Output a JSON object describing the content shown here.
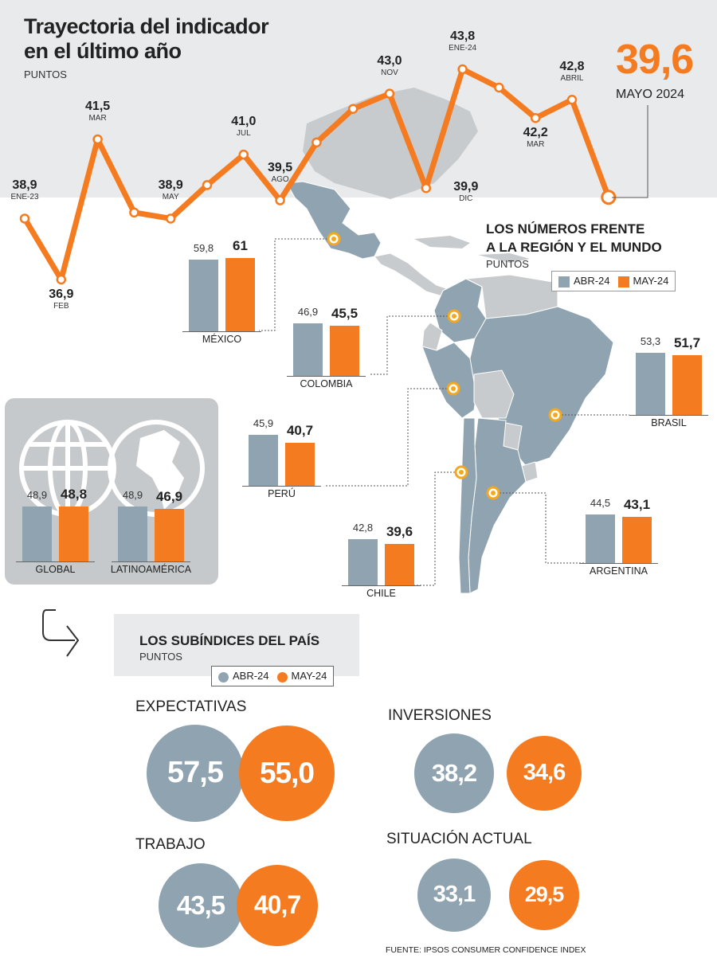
{
  "header": {
    "title_line1": "Trayectoria del indicador",
    "title_line2": "en el último año",
    "units": "PUNTOS",
    "current_value": "39,6",
    "current_label": "MAYO 2024"
  },
  "colors": {
    "orange": "#f47b20",
    "gray_blue": "#8fa3b0",
    "band": "#e9eaeb",
    "map_gray": "#c8cbcd",
    "map_blue": "#8fa3b0",
    "globe_panel": "#c5c9cb"
  },
  "chart_data": [
    {
      "type": "line",
      "title": "Trayectoria del indicador en el último año",
      "ylabel": "PUNTOS",
      "points": [
        {
          "month": "ENE-23",
          "value": 38.9,
          "label": "38,9",
          "show": true
        },
        {
          "month": "FEB",
          "value": 36.9,
          "label": "36,9",
          "show": true
        },
        {
          "month": "MAR",
          "value": 41.5,
          "label": "41,5",
          "show": true
        },
        {
          "month": "",
          "value": 39.1,
          "label": "",
          "show": false
        },
        {
          "month": "MAY",
          "value": 38.9,
          "label": "38,9",
          "show": true
        },
        {
          "month": "",
          "value": 40.0,
          "label": "",
          "show": false
        },
        {
          "month": "JUL",
          "value": 41.0,
          "label": "41,0",
          "show": true
        },
        {
          "month": "AGO",
          "value": 39.5,
          "label": "39,5",
          "show": true
        },
        {
          "month": "",
          "value": 41.4,
          "label": "",
          "show": false
        },
        {
          "month": "",
          "value": 42.5,
          "label": "",
          "show": false
        },
        {
          "month": "NOV",
          "value": 43.0,
          "label": "43,0",
          "show": true
        },
        {
          "month": "DIC",
          "value": 39.9,
          "label": "39,9",
          "show": true
        },
        {
          "month": "ENE-24",
          "value": 43.8,
          "label": "43,8",
          "show": true
        },
        {
          "month": "",
          "value": 43.2,
          "label": "",
          "show": false
        },
        {
          "month": "MAR",
          "value": 42.2,
          "label": "42,2",
          "show": true
        },
        {
          "month": "ABRIL",
          "value": 42.8,
          "label": "42,8",
          "show": true
        },
        {
          "month": "",
          "value": 39.6,
          "label": "",
          "show": false
        }
      ]
    },
    {
      "type": "bar",
      "title": "LOS NÚMEROS FRENTE A LA REGIÓN Y EL MUNDO",
      "ylabel": "PUNTOS",
      "series": [
        {
          "name": "ABR-24"
        },
        {
          "name": "MAY-24"
        }
      ],
      "countries": [
        {
          "name": "MÉXICO",
          "abr": 59.8,
          "may": 61,
          "abr_label": "59,8",
          "may_label": "61"
        },
        {
          "name": "COLOMBIA",
          "abr": 46.9,
          "may": 45.5,
          "abr_label": "46,9",
          "may_label": "45,5"
        },
        {
          "name": "PERÚ",
          "abr": 45.9,
          "may": 40.7,
          "abr_label": "45,9",
          "may_label": "40,7"
        },
        {
          "name": "CHILE",
          "abr": 42.8,
          "may": 39.6,
          "abr_label": "42,8",
          "may_label": "39,6"
        },
        {
          "name": "BRASIL",
          "abr": 53.3,
          "may": 51.7,
          "abr_label": "53,3",
          "may_label": "51,7"
        },
        {
          "name": "ARGENTINA",
          "abr": 44.5,
          "may": 43.1,
          "abr_label": "44,5",
          "may_label": "43,1"
        },
        {
          "name": "GLOBAL",
          "abr": 48.9,
          "may": 48.8,
          "abr_label": "48,9",
          "may_label": "48,8"
        },
        {
          "name": "LATINOAMÉRICA",
          "abr": 48.9,
          "may": 46.9,
          "abr_label": "48,9",
          "may_label": "46,9"
        }
      ]
    },
    {
      "type": "bubble",
      "title": "LOS SUBÍNDICES DEL PAÍS",
      "ylabel": "PUNTOS",
      "series": [
        {
          "name": "ABR-24"
        },
        {
          "name": "MAY-24"
        }
      ],
      "subindices": [
        {
          "name": "EXPECTATIVAS",
          "abr": 57.5,
          "may": 55.0,
          "abr_label": "57,5",
          "may_label": "55,0"
        },
        {
          "name": "INVERSIONES",
          "abr": 38.2,
          "may": 34.6,
          "abr_label": "38,2",
          "may_label": "34,6"
        },
        {
          "name": "TRABAJO",
          "abr": 43.5,
          "may": 40.7,
          "abr_label": "43,5",
          "may_label": "40,7"
        },
        {
          "name": "SITUACIÓN ACTUAL",
          "abr": 33.1,
          "may": 29.5,
          "abr_label": "33,1",
          "may_label": "29,5"
        }
      ]
    }
  ],
  "region": {
    "title_line1": "LOS NÚMEROS FRENTE",
    "title_line2": "A LA REGIÓN Y EL MUNDO",
    "units": "PUNTOS",
    "legend_abr": "ABR-24",
    "legend_may": "MAY-24"
  },
  "subindices_section": {
    "title": "LOS SUBÍNDICES DEL PAÍS",
    "units": "PUNTOS",
    "legend_abr": "ABR-24",
    "legend_may": "MAY-24"
  },
  "source": "FUENTE: IPSOS CONSUMER CONFIDENCE INDEX"
}
